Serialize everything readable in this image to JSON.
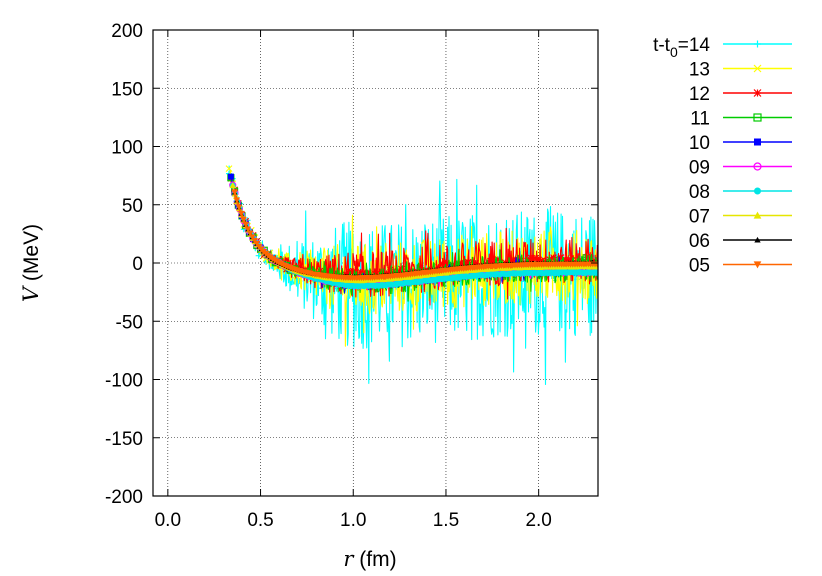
{
  "chart_data": {
    "type": "scatter",
    "title": "",
    "xlabel_symbol": "r",
    "xlabel_unit": " (fm)",
    "ylabel_symbol": "V",
    "ylabel_unit": " (MeV)",
    "xlim": [
      -0.08,
      2.32
    ],
    "ylim": [
      -200,
      200
    ],
    "grid": true,
    "legend_position": "outside-right",
    "xticks": [
      0.0,
      0.5,
      1.0,
      1.5,
      2.0
    ],
    "xtick_labels": [
      "0.0",
      "0.5",
      "1.0",
      "1.5",
      "2.0"
    ],
    "yticks": [
      200,
      150,
      100,
      50,
      0,
      -50,
      -100,
      -150,
      -200
    ],
    "ytick_labels": [
      "200",
      "150",
      "100",
      "50",
      "0",
      "-50",
      "-100",
      "-150",
      "-200"
    ],
    "series": [
      {
        "name": "t-t_0=14",
        "legend_main": "t-t",
        "legend_sub": "0",
        "legend_tail": "=14",
        "color": "#00ffff",
        "marker": "plus",
        "noise": 55,
        "offset": -8,
        "r_start": 0.33
      },
      {
        "name": "13",
        "legend_main": "13",
        "legend_sub": "",
        "legend_tail": "",
        "color": "#ffff00",
        "marker": "x",
        "noise": 32,
        "offset": -3,
        "r_start": 0.33
      },
      {
        "name": "12",
        "legend_main": "12",
        "legend_sub": "",
        "legend_tail": "",
        "color": "#ff0000",
        "marker": "star",
        "noise": 20,
        "offset": 2,
        "r_start": 0.34
      },
      {
        "name": "11",
        "legend_main": "11",
        "legend_sub": "",
        "legend_tail": "",
        "color": "#00cc00",
        "marker": "square-open",
        "noise": 12,
        "offset": -4,
        "r_start": 0.34
      },
      {
        "name": "10",
        "legend_main": "10",
        "legend_sub": "",
        "legend_tail": "",
        "color": "#0000ff",
        "marker": "square",
        "noise": 6,
        "offset": -5,
        "r_start": 0.34
      },
      {
        "name": "09",
        "legend_main": "09",
        "legend_sub": "",
        "legend_tail": "",
        "color": "#ff00ff",
        "marker": "circle-open",
        "noise": 4,
        "offset": -7,
        "r_start": 0.35
      },
      {
        "name": "08",
        "legend_main": "08",
        "legend_sub": "",
        "legend_tail": "",
        "color": "#00e5e5",
        "marker": "circle",
        "noise": 3,
        "offset": -8,
        "r_start": 0.35
      },
      {
        "name": "07",
        "legend_main": "07",
        "legend_sub": "",
        "legend_tail": "",
        "color": "#e6e600",
        "marker": "triangle",
        "noise": 2,
        "offset": -3,
        "r_start": 0.35
      },
      {
        "name": "06",
        "legend_main": "06",
        "legend_sub": "",
        "legend_tail": "",
        "color": "#000000",
        "marker": "triangle-small",
        "noise": 1,
        "offset": 0,
        "r_start": 0.36
      },
      {
        "name": "05",
        "legend_main": "05",
        "legend_sub": "",
        "legend_tail": "",
        "color": "#ff6600",
        "marker": "triangle-down",
        "noise": 1,
        "offset": -1,
        "r_start": 0.36
      }
    ]
  }
}
